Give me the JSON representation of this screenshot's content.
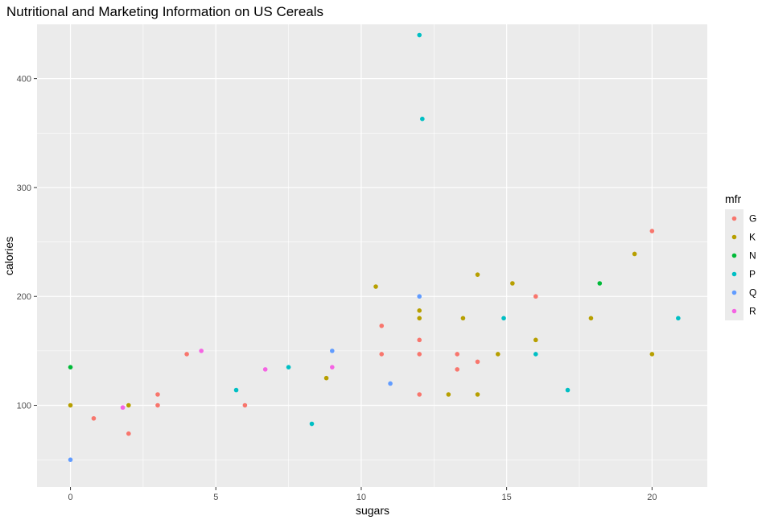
{
  "chart_data": {
    "type": "scatter",
    "title": "Nutritional and Marketing Information on US Cereals",
    "xlabel": "sugars",
    "ylabel": "calories",
    "xlim": [
      -1.15,
      21.9
    ],
    "ylim": [
      25,
      450
    ],
    "xticks": [
      0,
      5,
      10,
      15,
      20
    ],
    "yticks": [
      100,
      200,
      300,
      400
    ],
    "grid": true,
    "legend": {
      "title": "mfr",
      "placement": "right"
    },
    "series": [
      {
        "name": "G",
        "color": "#F8766D",
        "points": [
          [
            0.8,
            88
          ],
          [
            2,
            74
          ],
          [
            3,
            110
          ],
          [
            3,
            100
          ],
          [
            4,
            147
          ],
          [
            6,
            100
          ],
          [
            10.7,
            173
          ],
          [
            10.7,
            147
          ],
          [
            12,
            160
          ],
          [
            12,
            147
          ],
          [
            12,
            110
          ],
          [
            13.3,
            147
          ],
          [
            13.3,
            133
          ],
          [
            14,
            140
          ],
          [
            16,
            200
          ],
          [
            20,
            260
          ]
        ]
      },
      {
        "name": "K",
        "color": "#B79F00",
        "points": [
          [
            0,
            100
          ],
          [
            2,
            100
          ],
          [
            8.8,
            125
          ],
          [
            10.5,
            209
          ],
          [
            12,
            187
          ],
          [
            12,
            180
          ],
          [
            13,
            110
          ],
          [
            13.5,
            180
          ],
          [
            14,
            220
          ],
          [
            14,
            110
          ],
          [
            14.7,
            147
          ],
          [
            15.2,
            212
          ],
          [
            16,
            160
          ],
          [
            17.9,
            180
          ],
          [
            19.4,
            239
          ],
          [
            20,
            147
          ]
        ]
      },
      {
        "name": "N",
        "color": "#00BA38",
        "points": [
          [
            0,
            135
          ],
          [
            18.2,
            212
          ]
        ]
      },
      {
        "name": "P",
        "color": "#00BFC4",
        "points": [
          [
            5.7,
            114
          ],
          [
            7.5,
            135
          ],
          [
            8.3,
            83
          ],
          [
            12,
            440
          ],
          [
            12.1,
            363
          ],
          [
            14.9,
            180
          ],
          [
            16,
            147
          ],
          [
            17.1,
            114
          ],
          [
            20.9,
            180
          ]
        ]
      },
      {
        "name": "Q",
        "color": "#619CFF",
        "points": [
          [
            0,
            50
          ],
          [
            9,
            150
          ],
          [
            11,
            120
          ],
          [
            12,
            200
          ]
        ]
      },
      {
        "name": "R",
        "color": "#F564E3",
        "points": [
          [
            1.8,
            98
          ],
          [
            4.5,
            150
          ],
          [
            6.7,
            133
          ],
          [
            9,
            135
          ]
        ]
      }
    ]
  }
}
